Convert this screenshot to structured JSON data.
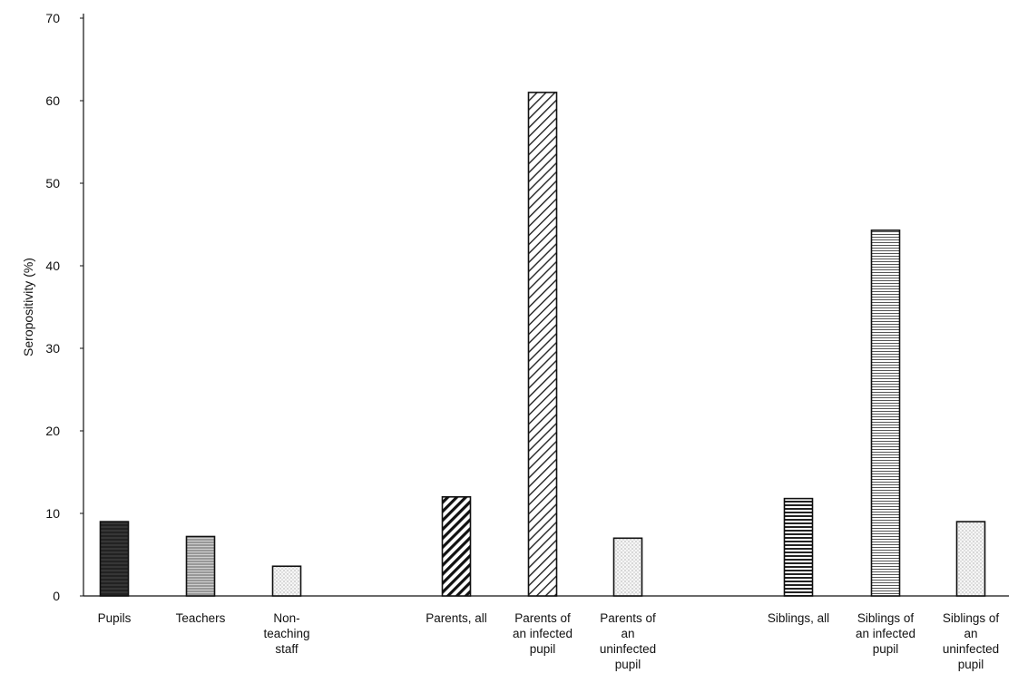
{
  "chart_data": {
    "type": "bar",
    "title": "",
    "xlabel": "",
    "ylabel": "Seropositivity (%)",
    "ylim": [
      0,
      70
    ],
    "yticks": [
      0,
      10,
      20,
      30,
      40,
      50,
      60,
      70
    ],
    "grid": false,
    "legend": "none",
    "categories": [
      "Pupils",
      "Teachers",
      "Non-teaching staff",
      "Parents, all",
      "Parents of an infected pupil",
      "Parents of an uninfected pupil",
      "Siblings, all",
      "Siblings of an infected pupil",
      "Siblings of an uninfected pupil"
    ],
    "category_label_lines": [
      [
        "Pupils"
      ],
      [
        "Teachers"
      ],
      [
        "Non-",
        "teaching",
        "staff"
      ],
      [
        "Parents, all"
      ],
      [
        "Parents of",
        "an infected",
        "pupil"
      ],
      [
        "Parents of",
        "an",
        "uninfected",
        "pupil"
      ],
      [
        "Siblings, all"
      ],
      [
        "Siblings of",
        "an infected",
        "pupil"
      ],
      [
        "Siblings of",
        "an",
        "uninfected",
        "pupil"
      ]
    ],
    "values": [
      9,
      7.2,
      3.6,
      12,
      61,
      7,
      11.8,
      44.3,
      9
    ],
    "patterns": [
      "solid-dark",
      "fine-gray",
      "light-dotted",
      "diagonal-bold",
      "diagonal-thin",
      "light-dotted",
      "horizontal-bold",
      "horizontal-thin",
      "light-dotted"
    ],
    "colors": {
      "axis": "#111111",
      "bar_stroke": "#111111",
      "text": "#111111"
    }
  }
}
